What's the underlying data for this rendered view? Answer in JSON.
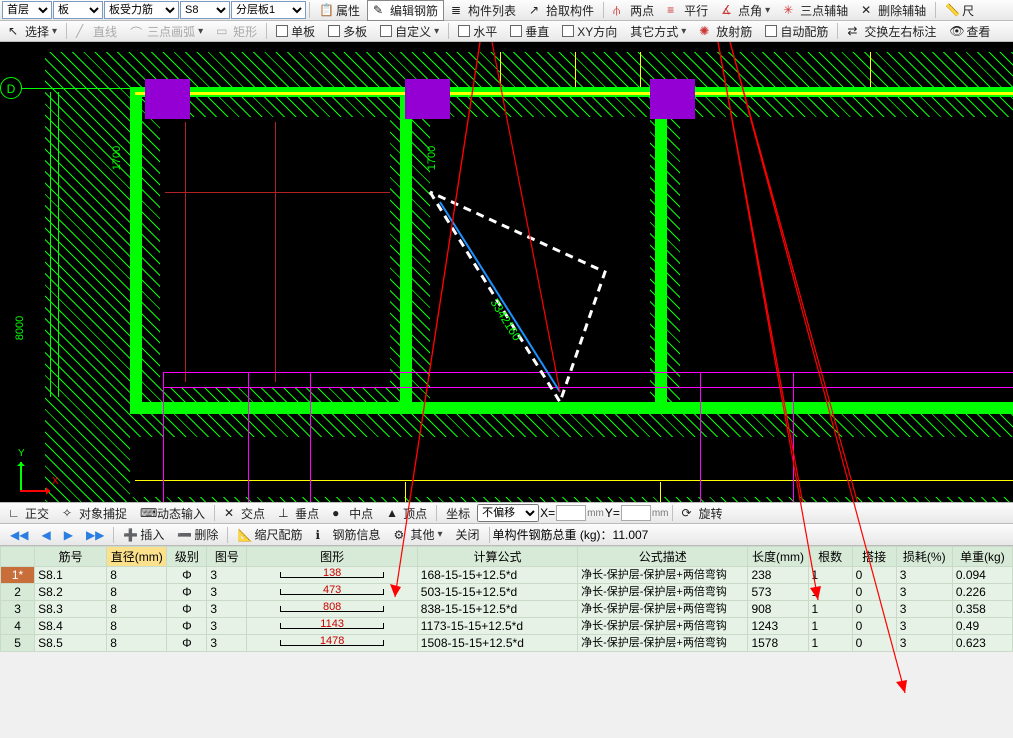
{
  "selectors": {
    "layer": "首层",
    "member": "板",
    "rebar_type": "板受力筋",
    "rebar_num": "S8",
    "panel": "分层板1"
  },
  "tb1": {
    "prop": "属性",
    "edit": "编辑钢筋",
    "list": "构件列表",
    "pick": "拾取构件",
    "twop": "两点",
    "para": "平行",
    "ptang": "点角",
    "tripax": "三点辅轴",
    "delax": "删除辅轴",
    "ruler": "尺"
  },
  "tb2": {
    "select": "选择",
    "line": "直线",
    "arc3": "三点画弧",
    "rect": "矩形",
    "single": "单板",
    "multi": "多板",
    "custom": "自定义",
    "horiz": "水平",
    "vert": "垂直",
    "xy": "XY方向",
    "other": "其它方式",
    "radial": "放射筋",
    "auto": "自动配筋",
    "swap": "交换左右标注",
    "view": "查看"
  },
  "canvas": {
    "dim_left": "8000",
    "dim_top1": "1700",
    "dim_top2": "1700",
    "dim_diag": "3342160",
    "axis_x": "X",
    "axis_y": "Y",
    "grid_mark": "D"
  },
  "sb": {
    "ortho": "正交",
    "snap": "对象捕捉",
    "dyn": "动态输入",
    "inter": "交点",
    "perp": "垂点",
    "mid": "中点",
    "peak": "顶点",
    "coord": "坐标",
    "nooff": "不偏移",
    "x_eq": "X=",
    "y_eq": "Y=",
    "mm": "mm",
    "rotate": "旋转"
  },
  "rt": {
    "prev": "◀",
    "next": "▶",
    "play": "▶▶",
    "insert": "插入",
    "delete": "删除",
    "shrink": "缩尺配筋",
    "info": "钢筋信息",
    "other": "其他",
    "close": "关闭",
    "total_lbl": "单构件钢筋总重 (kg)：",
    "total_val": "11.007"
  },
  "cols": [
    "筋号",
    "直径(mm)",
    "级别",
    "图号",
    "图形",
    "计算公式",
    "公式描述",
    "长度(mm)",
    "根数",
    "搭接",
    "损耗(%)",
    "单重(kg)"
  ],
  "rows": [
    {
      "n": "1*",
      "id": "S8.1",
      "dia": "8",
      "grade": "Φ",
      "fig": "3",
      "g": "138",
      "calc": "168-15-15+12.5*d",
      "desc": "净长-保护层-保护层+两倍弯钩",
      "len": "238",
      "cnt": "1",
      "lap": "0",
      "loss": "3",
      "wt": "0.094"
    },
    {
      "n": "2",
      "id": "S8.2",
      "dia": "8",
      "grade": "Φ",
      "fig": "3",
      "g": "473",
      "calc": "503-15-15+12.5*d",
      "desc": "净长-保护层-保护层+两倍弯钩",
      "len": "573",
      "cnt": "1",
      "lap": "0",
      "loss": "3",
      "wt": "0.226"
    },
    {
      "n": "3",
      "id": "S8.3",
      "dia": "8",
      "grade": "Φ",
      "fig": "3",
      "g": "808",
      "calc": "838-15-15+12.5*d",
      "desc": "净长-保护层-保护层+两倍弯钩",
      "len": "908",
      "cnt": "1",
      "lap": "0",
      "loss": "3",
      "wt": "0.358"
    },
    {
      "n": "4",
      "id": "S8.4",
      "dia": "8",
      "grade": "Φ",
      "fig": "3",
      "g": "1143",
      "calc": "1173-15-15+12.5*d",
      "desc": "净长-保护层-保护层+两倍弯钩",
      "len": "1243",
      "cnt": "1",
      "lap": "0",
      "loss": "3",
      "wt": "0.49"
    },
    {
      "n": "5",
      "id": "S8.5",
      "dia": "8",
      "grade": "Φ",
      "fig": "3",
      "g": "1478",
      "calc": "1508-15-15+12.5*d",
      "desc": "净长-保护层-保护层+两倍弯钩",
      "len": "1578",
      "cnt": "1",
      "lap": "0",
      "loss": "3",
      "wt": "0.623"
    }
  ]
}
